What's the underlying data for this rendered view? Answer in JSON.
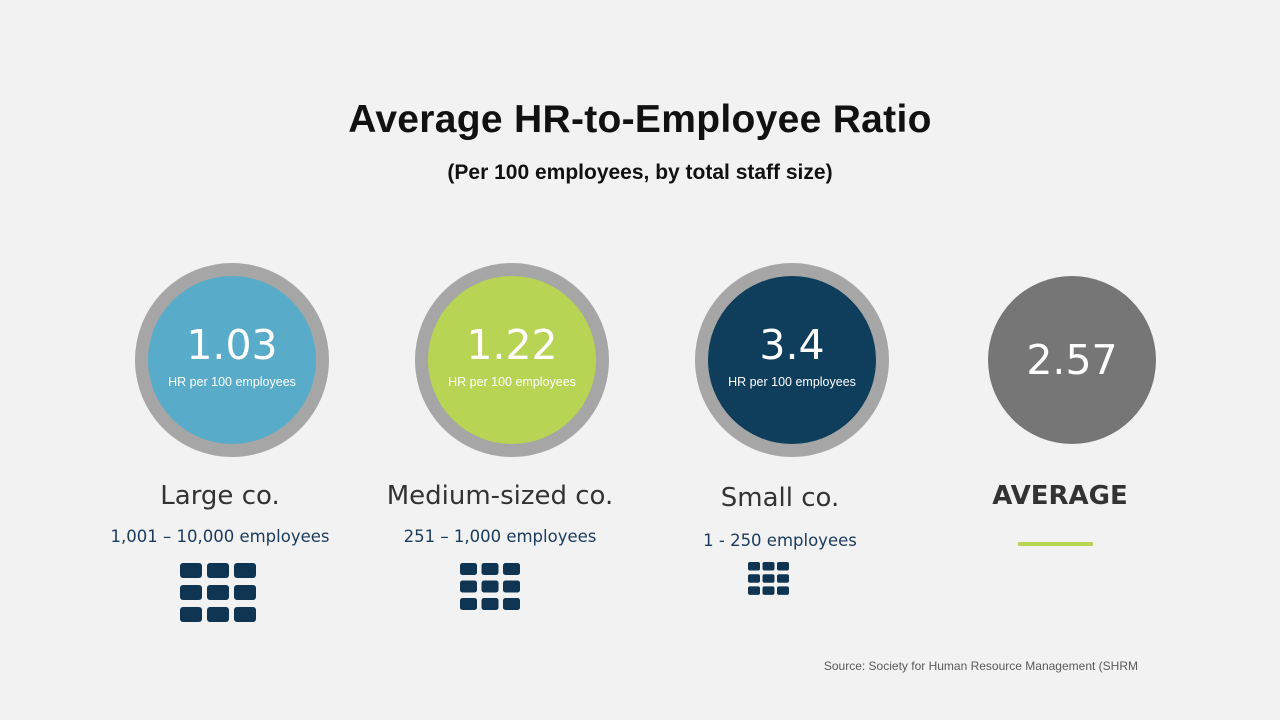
{
  "title": "Average HR-to-Employee Ratio",
  "subtitle": "(Per 100 employees, by total staff size)",
  "unit_label": "HR per 100 employees",
  "source": "Source:  Society for Human Resource Management (SHRM",
  "colors": {
    "background": "#f2f2f2",
    "ring": "#a6a6a6",
    "large": "#58acc9",
    "medium": "#b8d455",
    "small": "#0f3d5c",
    "average": "#767676",
    "icon": "#0f3552",
    "text_range": "#1a3a5c"
  },
  "chart_data": {
    "type": "bar",
    "title": "Average HR-to-Employee Ratio",
    "subtitle": "(Per 100 employees, by total staff size)",
    "categories": [
      "Large co.",
      "Medium-sized co.",
      "Small co.",
      "AVERAGE"
    ],
    "ranges": [
      "1,001 – 10,000 employees",
      "251 – 1,000 employees",
      "1 - 250 employees",
      ""
    ],
    "values": [
      1.03,
      1.22,
      3.4,
      2.57
    ],
    "value_labels": [
      "1.03",
      "1.22",
      "3.4",
      "2.57"
    ],
    "unit": "HR per 100 employees"
  },
  "items": [
    {
      "value": "1.03",
      "unit": "HR per 100 employees",
      "label": "Large co.",
      "range": "1,001 – 10,000 employees",
      "color": "#58acc9",
      "icon": "building-grid-icon"
    },
    {
      "value": "1.22",
      "unit": "HR per 100 employees",
      "label": "Medium-sized co.",
      "range": "251 – 1,000 employees",
      "color": "#b8d455",
      "icon": "building-grid-icon"
    },
    {
      "value": "3.4",
      "unit": "HR per 100 employees",
      "label": "Small co.",
      "range": "1 - 250 employees",
      "color": "#0f3d5c",
      "icon": "building-grid-icon"
    },
    {
      "value": "2.57",
      "label": "AVERAGE",
      "color": "#767676"
    }
  ]
}
